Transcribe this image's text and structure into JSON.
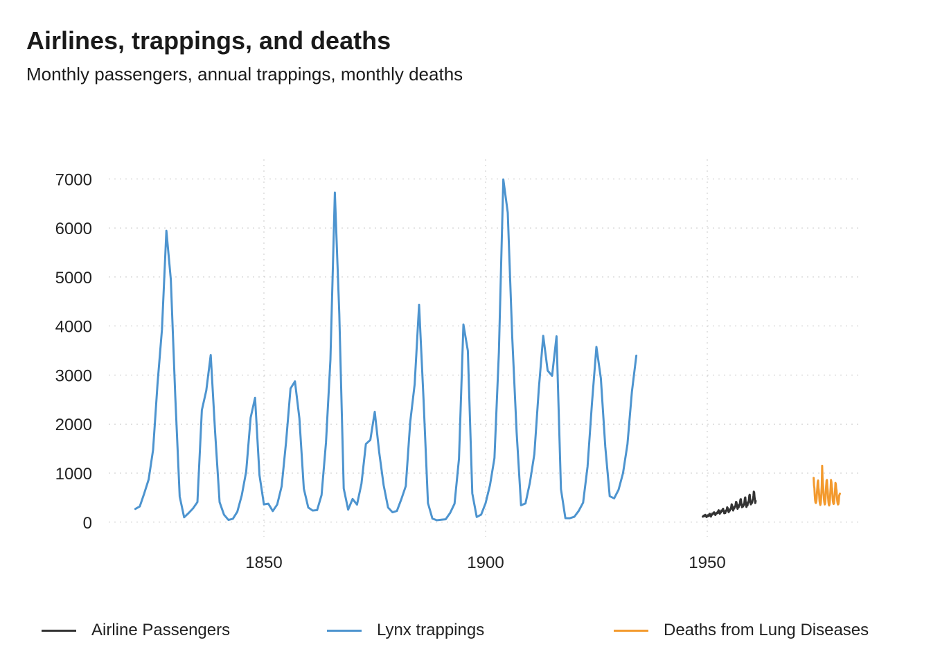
{
  "chart_data": {
    "type": "line",
    "title": "Airlines, trappings, and deaths",
    "subtitle": "Monthly passengers, annual trappings, monthly deaths",
    "xlabel": "",
    "ylabel": "",
    "xlim": [
      1815,
      1985
    ],
    "ylim": [
      -300,
      7400
    ],
    "x_ticks": [
      1850,
      1900,
      1950
    ],
    "y_ticks": [
      0,
      1000,
      2000,
      3000,
      4000,
      5000,
      6000,
      7000
    ],
    "grid": true,
    "legend_position": "bottom",
    "series": [
      {
        "name": "Airline Passengers",
        "color": "#333333",
        "x_start": 1949,
        "x_step": 0.0833333,
        "values": [
          112,
          118,
          132,
          129,
          121,
          135,
          148,
          148,
          136,
          119,
          104,
          118,
          115,
          126,
          141,
          135,
          125,
          149,
          170,
          170,
          158,
          133,
          114,
          140,
          145,
          150,
          178,
          163,
          172,
          178,
          199,
          199,
          184,
          162,
          146,
          166,
          171,
          180,
          193,
          181,
          183,
          218,
          230,
          242,
          209,
          191,
          172,
          194,
          196,
          196,
          236,
          235,
          229,
          243,
          264,
          272,
          237,
          211,
          180,
          201,
          204,
          188,
          235,
          227,
          234,
          264,
          302,
          293,
          259,
          229,
          203,
          229,
          242,
          233,
          267,
          269,
          270,
          315,
          364,
          347,
          312,
          274,
          237,
          278,
          284,
          277,
          317,
          313,
          318,
          374,
          413,
          405,
          355,
          306,
          271,
          306,
          315,
          301,
          356,
          348,
          355,
          422,
          465,
          467,
          404,
          347,
          305,
          336,
          340,
          318,
          362,
          348,
          363,
          435,
          491,
          505,
          404,
          359,
          310,
          337,
          360,
          342,
          406,
          396,
          420,
          472,
          548,
          559,
          463,
          407,
          362,
          405,
          417,
          391,
          419,
          461,
          472,
          535,
          622,
          606,
          508,
          461,
          390,
          432
        ]
      },
      {
        "name": "Lynx trappings",
        "color": "#4d94cf",
        "x_start": 1821,
        "x_step": 1,
        "values": [
          269,
          321,
          585,
          871,
          1475,
          2821,
          3928,
          5943,
          4950,
          2577,
          523,
          98,
          184,
          279,
          409,
          2285,
          2685,
          3409,
          1824,
          409,
          151,
          45,
          68,
          213,
          546,
          1033,
          2129,
          2536,
          957,
          361,
          377,
          225,
          360,
          731,
          1638,
          2725,
          2871,
          2119,
          684,
          299,
          236,
          245,
          552,
          1623,
          3311,
          6721,
          4254,
          687,
          255,
          473,
          358,
          784,
          1594,
          1676,
          2251,
          1426,
          756,
          299,
          201,
          229,
          469,
          736,
          2042,
          2811,
          4431,
          2511,
          389,
          73,
          39,
          49,
          59,
          188,
          377,
          1292,
          4031,
          3495,
          587,
          105,
          153,
          387,
          758,
          1307,
          3465,
          6991,
          6313,
          3794,
          1836,
          345,
          382,
          808,
          1388,
          2713,
          3800,
          3091,
          2985,
          3790,
          674,
          81,
          80,
          108,
          229,
          399,
          1132,
          2432,
          3574,
          2935,
          1537,
          529,
          485,
          662,
          1000,
          1590,
          2657,
          3396
        ]
      },
      {
        "name": "Deaths from Lung Diseases",
        "color": "#f39a2e",
        "x_start": 1974,
        "x_step": 0.0833333,
        "values": [
          900,
          750,
          700,
          550,
          450,
          400,
          390,
          420,
          480,
          600,
          700,
          820,
          850,
          700,
          650,
          550,
          430,
          380,
          350,
          380,
          460,
          600,
          750,
          1150,
          900,
          780,
          700,
          560,
          460,
          400,
          360,
          380,
          470,
          620,
          750,
          850,
          860,
          720,
          650,
          520,
          420,
          360,
          340,
          370,
          450,
          580,
          700,
          860,
          820,
          720,
          680,
          540,
          440,
          390,
          370,
          380,
          460,
          560,
          650,
          800,
          780,
          690,
          640,
          520,
          430,
          380,
          360,
          370,
          430,
          540,
          560,
          580
        ]
      }
    ]
  }
}
